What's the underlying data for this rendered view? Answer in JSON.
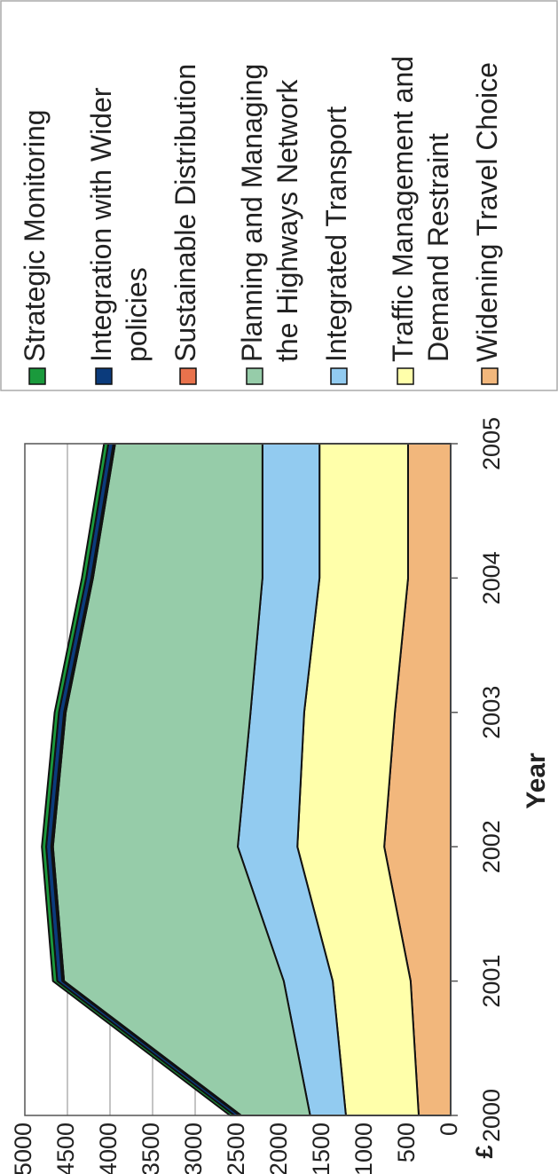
{
  "chart_data": {
    "type": "stacked_area",
    "x_label": "Year",
    "y_label": "£",
    "categories": [
      "2000",
      "2001",
      "2002",
      "2003",
      "2004",
      "2005"
    ],
    "series": [
      {
        "name": "Widening Travel Choice",
        "color": "#f2b77c",
        "values": [
          375,
          470,
          780,
          655,
          500,
          500
        ]
      },
      {
        "name": "Traffic Management and Demand Restraint",
        "color": "#ffffaa",
        "values": [
          855,
          915,
          1020,
          1065,
          1040,
          1040
        ]
      },
      {
        "name": "Integrated Transport",
        "color": "#92cbf0",
        "values": [
          420,
          575,
          700,
          630,
          670,
          670
        ]
      },
      {
        "name": "Planning and Managing the Highways Network",
        "color": "#96cca9",
        "values": [
          810,
          2580,
          2170,
          2170,
          1990,
          1730
        ]
      },
      {
        "name": "Sustainable Distribution",
        "color": "#e8724c",
        "values": [
          20,
          20,
          20,
          20,
          20,
          20
        ]
      },
      {
        "name": "Integration with Wider policies",
        "color": "#0b3b7c",
        "values": [
          60,
          60,
          60,
          60,
          60,
          60
        ]
      },
      {
        "name": "Strategic Monitoring",
        "color": "#1a9a3c",
        "values": [
          50,
          50,
          50,
          50,
          50,
          50
        ]
      }
    ],
    "ylim": [
      0,
      5000
    ],
    "yticks": [
      0,
      500,
      1000,
      1500,
      2000,
      2500,
      3000,
      3500,
      4000,
      4500,
      5000
    ],
    "grid": true
  }
}
